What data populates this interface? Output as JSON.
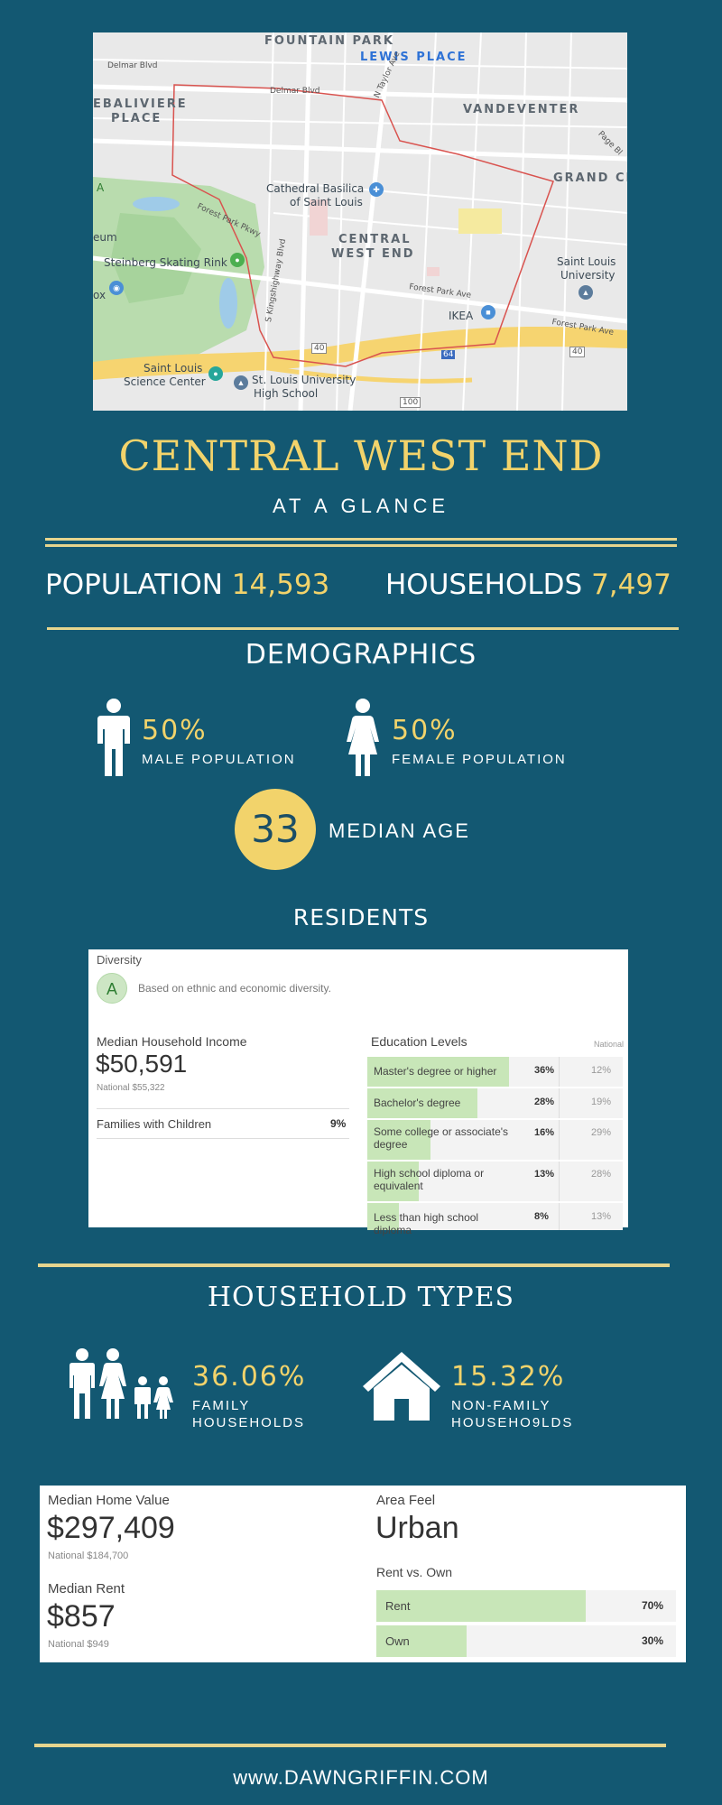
{
  "map": {
    "labels": {
      "fountain_park": "FOUNTAIN PARK",
      "lewis_place": "LEWIS PLACE",
      "debaliviere_1": "EBALIVIERE",
      "debaliviere_2": "PLACE",
      "vandeventer": "VANDEVENTER",
      "grand_center": "GRAND CE",
      "central_1": "CENTRAL",
      "central_2": "WEST END",
      "cathedral_1": "Cathedral Basilica",
      "cathedral_2": "of Saint Louis",
      "steinberg": "Steinberg Skating Rink",
      "slu_1": "Saint Louis",
      "slu_2": "University",
      "ikea": "IKEA",
      "science_1": "Saint Louis",
      "science_2": "Science Center",
      "slu_high_1": "St. Louis University",
      "slu_high_2": "High School",
      "eum": "eum",
      "ox": "ox",
      "park_letter": "A",
      "delmar_left": "Delmar Blvd",
      "delmar_right": "Delmar Blvd",
      "taylor": "N Taylor Ave",
      "forest_park_pkwy": "Forest Park Pkwy",
      "kingshighway": "S Kingshighway Blvd",
      "forest_park_ave": "Forest Park Ave",
      "forest_park_ave_2": "Forest Park Ave",
      "page": "Page Bl",
      "hwy40": "40",
      "hwy40b": "40",
      "hwy64": "64",
      "hwy100": "100"
    }
  },
  "header": {
    "title": "CENTRAL WEST END",
    "subtitle": "AT A GLANCE"
  },
  "stats": {
    "population_label": "POPULATION",
    "population_value": "14,593",
    "households_label": "HOUSEHOLDS",
    "households_value": "7,497"
  },
  "demographics": {
    "title": "DEMOGRAPHICS",
    "male_pct": "50%",
    "male_label": "MALE POPULATION",
    "female_pct": "50%",
    "female_label": "FEMALE POPULATION",
    "median_age": "33",
    "median_age_label": "MEDIAN AGE"
  },
  "residents": {
    "title": "RESIDENTS",
    "diversity_label": "Diversity",
    "diversity_grade": "A",
    "diversity_note": "Based on ethnic and economic diversity.",
    "income_label": "Median Household Income",
    "income_value": "$50,591",
    "income_national": "National $55,322",
    "families_label": "Families with Children",
    "families_value": "9%",
    "education_title": "Education Levels",
    "national_header": "National",
    "education": [
      {
        "name": "Master's degree or higher",
        "value": "36%",
        "fraction": 0.36,
        "national": "12%"
      },
      {
        "name": "Bachelor's degree",
        "value": "28%",
        "fraction": 0.28,
        "national": "19%"
      },
      {
        "name": "Some college or associate's degree",
        "value": "16%",
        "fraction": 0.16,
        "national": "29%"
      },
      {
        "name": "High school diploma or equivalent",
        "value": "13%",
        "fraction": 0.13,
        "national": "28%"
      },
      {
        "name": "Less than high school diploma",
        "value": "8%",
        "fraction": 0.08,
        "national": "13%"
      }
    ]
  },
  "household_types": {
    "title": "HOUSEHOLD TYPES",
    "family_pct": "36.06%",
    "family_label_1": "FAMILY",
    "family_label_2": "HOUSEHOLDS",
    "nonfamily_pct": "15.32%",
    "nonfamily_label_1": "NON-FAMILY",
    "nonfamily_label_2": "HOUSEHO9LDS"
  },
  "housing": {
    "home_value_label": "Median Home Value",
    "home_value": "$297,409",
    "home_value_national": "National $184,700",
    "rent_label": "Median Rent",
    "rent_value": "$857",
    "rent_national": "National $949",
    "area_feel_label": "Area Feel",
    "area_feel_value": "Urban",
    "rent_vs_own_label": "Rent vs. Own",
    "rent_own": [
      {
        "name": "Rent",
        "value": "70%",
        "fraction": 0.7
      },
      {
        "name": "Own",
        "value": "30%",
        "fraction": 0.3
      }
    ]
  },
  "footer": {
    "website": "www.DAWNGRIFFIN.COM"
  },
  "colors": {
    "background": "#135872",
    "accent_yellow": "#f2d36b",
    "rule_gold": "#e6d58e",
    "bar_green": "#c8e6b8"
  }
}
